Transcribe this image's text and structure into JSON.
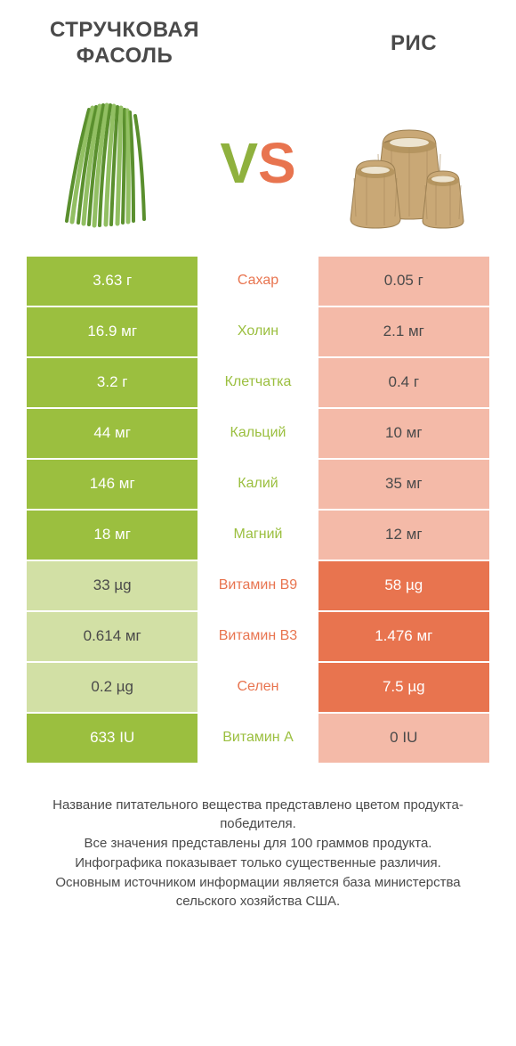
{
  "titles": {
    "left": "СТРУЧКОВАЯ ФАСОЛЬ",
    "right": "РИС"
  },
  "vs": {
    "v": "V",
    "s": "S"
  },
  "colors": {
    "green": "#9bbf3f",
    "orange": "#e8744f",
    "lightgreen": "#d2e0a5",
    "lightorange": "#f4baa8",
    "text": "#4a4a4a",
    "white": "#ffffff"
  },
  "rows": [
    {
      "left": "3.63 г",
      "mid": "Сахар",
      "right": "0.05 г",
      "left_winner": true,
      "mid_color": "orange"
    },
    {
      "left": "16.9 мг",
      "mid": "Холин",
      "right": "2.1 мг",
      "left_winner": true,
      "mid_color": "green"
    },
    {
      "left": "3.2 г",
      "mid": "Клетчатка",
      "right": "0.4 г",
      "left_winner": true,
      "mid_color": "green"
    },
    {
      "left": "44 мг",
      "mid": "Кальций",
      "right": "10 мг",
      "left_winner": true,
      "mid_color": "green"
    },
    {
      "left": "146 мг",
      "mid": "Калий",
      "right": "35 мг",
      "left_winner": true,
      "mid_color": "green"
    },
    {
      "left": "18 мг",
      "mid": "Магний",
      "right": "12 мг",
      "left_winner": true,
      "mid_color": "green"
    },
    {
      "left": "33 µg",
      "mid": "Витамин B9",
      "right": "58 µg",
      "left_winner": false,
      "mid_color": "orange"
    },
    {
      "left": "0.614 мг",
      "mid": "Витамин B3",
      "right": "1.476 мг",
      "left_winner": false,
      "mid_color": "orange"
    },
    {
      "left": "0.2 µg",
      "mid": "Селен",
      "right": "7.5 µg",
      "left_winner": false,
      "mid_color": "orange"
    },
    {
      "left": "633 IU",
      "mid": "Витамин A",
      "right": "0 IU",
      "left_winner": true,
      "mid_color": "green"
    }
  ],
  "footer": {
    "l1": "Название питательного вещества представлено цветом продукта-победителя.",
    "l2": "Все значения представлены для 100 граммов продукта.",
    "l3": "Инфографика показывает только существенные различия.",
    "l4": "Основным источником информации является база министерства сельского хозяйства США."
  }
}
